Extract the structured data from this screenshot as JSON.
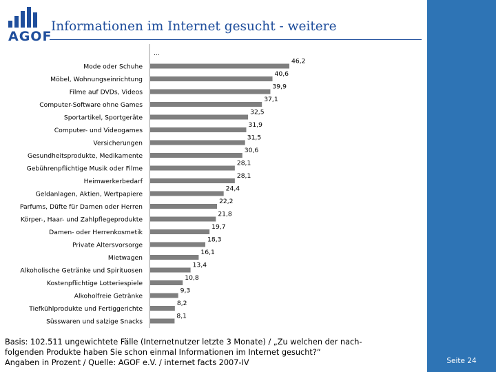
{
  "logo": {
    "text": "AGOF",
    "color": "#1f4e9c"
  },
  "header": {
    "title": "Informationen im Internet gesucht - weitere"
  },
  "footer": {
    "lines": [
      "Basis: 102.511 ungewichtete Fälle (Internetnutzer letzte 3 Monate) / „Zu welchen der nach-",
      "folgenden Produkte haben Sie schon einmal Informationen im Internet gesucht?“",
      "Angaben in Prozent / Quelle: AGOF e.V. / internet facts 2007-IV"
    ],
    "page": "Seite 24"
  },
  "colors": {
    "accent": "#1f4e9c",
    "panel": "#2e74b5",
    "bar": "#7f7f7f"
  },
  "chart_data": {
    "type": "bar",
    "orientation": "horizontal",
    "title": "Informationen im Internet gesucht - weitere",
    "continuation_label": "...",
    "xlim": [
      0,
      50
    ],
    "categories": [
      "Mode oder Schuhe",
      "Möbel, Wohnungseinrichtung",
      "Filme auf DVDs, Videos",
      "Computer-Software ohne Games",
      "Sportartikel, Sportgeräte",
      "Computer- und Videogames",
      "Versicherungen",
      "Gesundheitsprodukte, Medikamente",
      "Gebührenpflichtige Musik oder Filme",
      "Heimwerkerbedarf",
      "Geldanlagen, Aktien, Wertpapiere",
      "Parfums, Düfte für Damen oder Herren",
      "Körper-, Haar- und Zahlpflegeprodukte",
      "Damen- oder Herrenkosmetik",
      "Private Altersvorsorge",
      "Mietwagen",
      "Alkoholische Getränke und Spirituosen",
      "Kostenpflichtige Lotteriespiele",
      "Alkoholfreie Getränke",
      "Tiefkühlprodukte und Fertiggerichte",
      "Süsswaren und salzige Snacks"
    ],
    "values": [
      46.2,
      40.6,
      39.9,
      37.1,
      32.5,
      31.9,
      31.5,
      30.6,
      28.1,
      28.1,
      24.4,
      22.2,
      21.8,
      19.7,
      18.3,
      16.1,
      13.4,
      10.8,
      9.3,
      8.2,
      8.1
    ],
    "value_labels": [
      "46,2",
      "40,6",
      "39,9",
      "37,1",
      "32,5",
      "31,9",
      "31,5",
      "30,6",
      "28,1",
      "28,1",
      "24,4",
      "22,2",
      "21,8",
      "19,7",
      "18,3",
      "16,1",
      "13,4",
      "10,8",
      "9,3",
      "8,2",
      "8,1"
    ]
  }
}
